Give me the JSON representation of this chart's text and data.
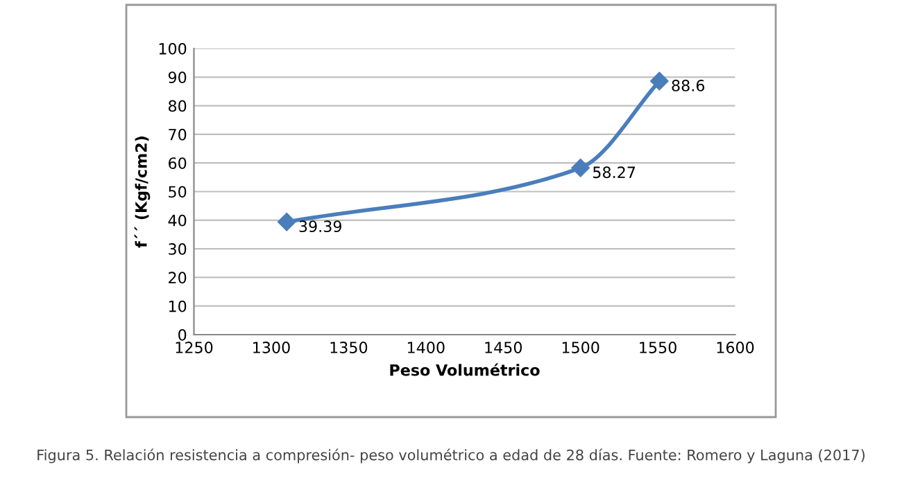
{
  "chart_data": {
    "type": "line",
    "xlabel": "Peso Volumétrico",
    "ylabel": "f´´ (Kgf/cm2)",
    "x": [
      1310,
      1500,
      1551
    ],
    "series": [
      {
        "color": "#4a7ebb",
        "values": [
          39.39,
          58.27,
          88.6
        ]
      }
    ],
    "data_labels": true,
    "marker": "diamond",
    "line_style": "solid",
    "grid": "y",
    "xlim": [
      1250,
      1600
    ],
    "xticks": [
      1250,
      1300,
      1350,
      1400,
      1450,
      1500,
      1550,
      1600
    ],
    "ylim": [
      0,
      100
    ],
    "yticks": [
      0,
      10,
      20,
      30,
      40,
      50,
      60,
      70,
      80,
      90,
      100
    ],
    "annotations": [
      "Figura 5. Relación resistencia a compresión- peso volumétrico a edad de 28 días. Fuente: Romero y Laguna (2017)"
    ]
  }
}
